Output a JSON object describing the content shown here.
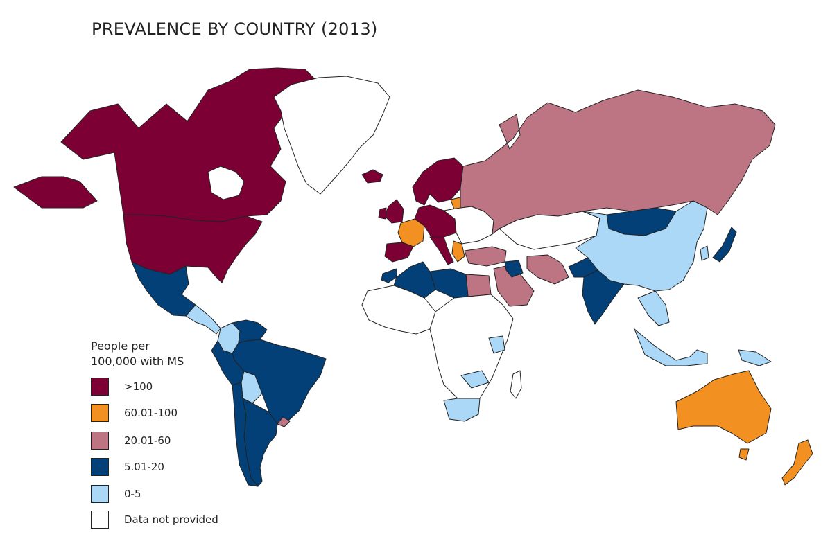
{
  "title": "PREVALENCE BY COUNTRY (2013)",
  "legend": {
    "title_line1": "People per",
    "title_line2": "100,000 with MS",
    "items": [
      {
        "label": ">100",
        "color": "#7d0035"
      },
      {
        "label": "60.01-100",
        "color": "#f29122"
      },
      {
        "label": "20.01-60",
        "color": "#bd7584"
      },
      {
        "label": "5.01-20",
        "color": "#034078"
      },
      {
        "label": "0-5",
        "color": "#aad8f6"
      },
      {
        "label": "Data not provided",
        "color": "#ffffff"
      }
    ]
  },
  "regions": [
    {
      "name": "Canada",
      "category": ">100"
    },
    {
      "name": "United States",
      "category": ">100"
    },
    {
      "name": "Greenland",
      "category": "Data not provided"
    },
    {
      "name": "Mexico",
      "category": "5.01-20"
    },
    {
      "name": "Central America",
      "category": "0-5"
    },
    {
      "name": "Colombia",
      "category": "0-5"
    },
    {
      "name": "Venezuela",
      "category": "5.01-20"
    },
    {
      "name": "Brazil",
      "category": "5.01-20"
    },
    {
      "name": "Peru",
      "category": "5.01-20"
    },
    {
      "name": "Bolivia",
      "category": "0-5"
    },
    {
      "name": "Argentina",
      "category": "5.01-20"
    },
    {
      "name": "Chile",
      "category": "5.01-20"
    },
    {
      "name": "Uruguay",
      "category": "20.01-60"
    },
    {
      "name": "United Kingdom",
      "category": ">100"
    },
    {
      "name": "Ireland",
      "category": ">100"
    },
    {
      "name": "Iceland",
      "category": ">100"
    },
    {
      "name": "Scandinavia",
      "category": ">100"
    },
    {
      "name": "France",
      "category": "60.01-100"
    },
    {
      "name": "Spain",
      "category": ">100"
    },
    {
      "name": "Central Europe",
      "category": ">100"
    },
    {
      "name": "Italy",
      "category": ">100"
    },
    {
      "name": "Baltics",
      "category": "60.01-100"
    },
    {
      "name": "Greece",
      "category": "60.01-100"
    },
    {
      "name": "Eastern Europe",
      "category": "Data not provided"
    },
    {
      "name": "Turkey",
      "category": "20.01-60"
    },
    {
      "name": "Russia",
      "category": "20.01-60"
    },
    {
      "name": "Kazakhstan",
      "category": "Data not provided"
    },
    {
      "name": "Mongolia",
      "category": "5.01-20"
    },
    {
      "name": "China",
      "category": "0-5"
    },
    {
      "name": "Japan",
      "category": "5.01-20"
    },
    {
      "name": "Korea",
      "category": "0-5"
    },
    {
      "name": "India",
      "category": "5.01-20"
    },
    {
      "name": "Pakistan",
      "category": "5.01-20"
    },
    {
      "name": "Iran",
      "category": "20.01-60"
    },
    {
      "name": "Saudi Arabia",
      "category": "20.01-60"
    },
    {
      "name": "Iraq",
      "category": "5.01-20"
    },
    {
      "name": "Egypt",
      "category": "20.01-60"
    },
    {
      "name": "Libya",
      "category": "5.01-20"
    },
    {
      "name": "Algeria",
      "category": "5.01-20"
    },
    {
      "name": "Morocco",
      "category": "5.01-20"
    },
    {
      "name": "West Africa",
      "category": "Data not provided"
    },
    {
      "name": "Central Africa",
      "category": "Data not provided"
    },
    {
      "name": "Kenya",
      "category": "0-5"
    },
    {
      "name": "Zambia",
      "category": "0-5"
    },
    {
      "name": "South Africa",
      "category": "0-5"
    },
    {
      "name": "Madagascar",
      "category": "Data not provided"
    },
    {
      "name": "Southeast Asia",
      "category": "0-5"
    },
    {
      "name": "Indonesia",
      "category": "0-5"
    },
    {
      "name": "Papua New Guinea",
      "category": "0-5"
    },
    {
      "name": "Australia",
      "category": "60.01-100"
    },
    {
      "name": "Tasmania",
      "category": "60.01-100"
    },
    {
      "name": "New Zealand",
      "category": "60.01-100"
    }
  ]
}
